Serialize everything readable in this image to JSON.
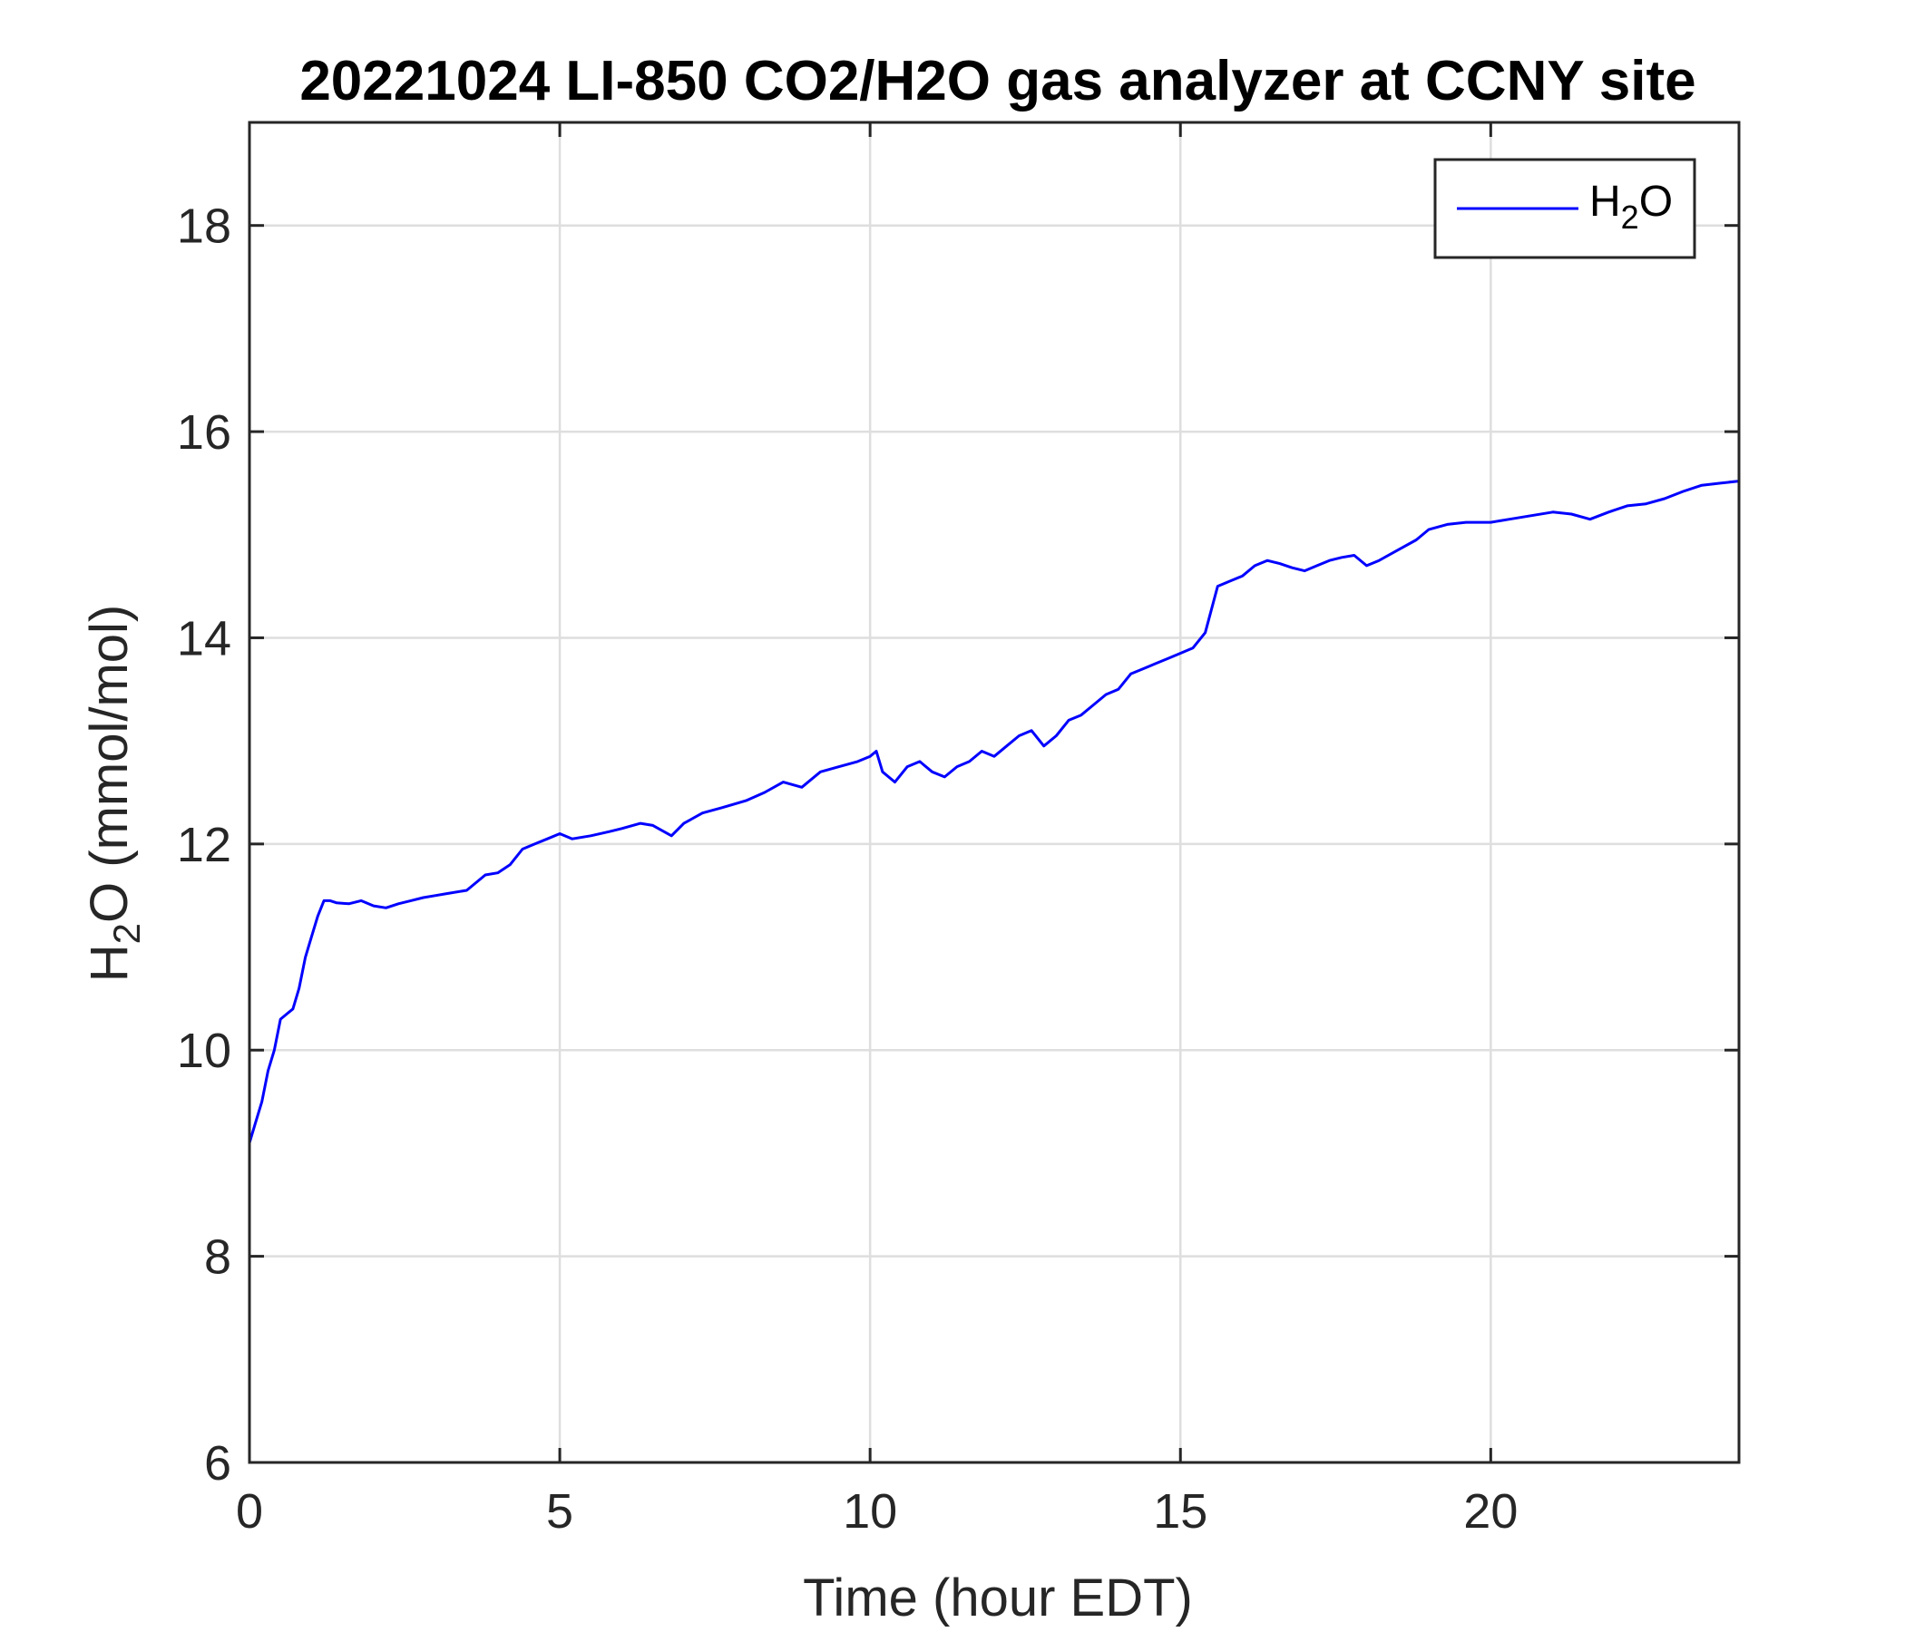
{
  "chart_data": {
    "type": "line",
    "title": "20221024 LI-850 CO2/H2O gas analyzer at CCNY site",
    "xlabel": "Time (hour EDT)",
    "ylabel": {
      "pre": "H",
      "sub": "2",
      "post": "O (mmol/mol)"
    },
    "xlim": [
      0,
      24
    ],
    "ylim": [
      6,
      19
    ],
    "xticks": [
      0,
      5,
      10,
      15,
      20
    ],
    "yticks": [
      6,
      8,
      10,
      12,
      14,
      16,
      18
    ],
    "grid": true,
    "legend_position": "top-right",
    "colors": {
      "series": "#0000ff",
      "axis": "#262626",
      "grid": "#dedede"
    },
    "series": [
      {
        "name": {
          "pre": "H",
          "sub": "2",
          "post": "O"
        },
        "x": [
          0,
          0.1,
          0.2,
          0.3,
          0.4,
          0.5,
          0.6,
          0.7,
          0.8,
          0.9,
          1.0,
          1.1,
          1.2,
          1.3,
          1.4,
          1.6,
          1.8,
          2.0,
          2.2,
          2.4,
          2.6,
          2.8,
          3.0,
          3.2,
          3.5,
          3.8,
          4.0,
          4.2,
          4.4,
          4.6,
          4.8,
          5.0,
          5.2,
          5.5,
          5.8,
          6.0,
          6.3,
          6.5,
          6.8,
          7.0,
          7.3,
          7.6,
          8.0,
          8.3,
          8.6,
          8.9,
          9.2,
          9.5,
          9.8,
          10.0,
          10.1,
          10.2,
          10.4,
          10.6,
          10.8,
          11.0,
          11.2,
          11.4,
          11.6,
          11.8,
          12.0,
          12.2,
          12.4,
          12.6,
          12.8,
          13.0,
          13.2,
          13.4,
          13.6,
          13.8,
          14.0,
          14.2,
          14.4,
          14.6,
          14.8,
          15.0,
          15.2,
          15.4,
          15.6,
          15.8,
          16.0,
          16.2,
          16.4,
          16.6,
          16.8,
          17.0,
          17.2,
          17.4,
          17.6,
          17.8,
          18.0,
          18.2,
          18.5,
          18.8,
          19.0,
          19.3,
          19.6,
          20.0,
          20.3,
          20.6,
          21.0,
          21.3,
          21.6,
          21.9,
          22.2,
          22.5,
          22.8,
          23.1,
          23.4,
          23.7,
          24.0
        ],
        "y": [
          9.1,
          9.3,
          9.5,
          9.8,
          10.0,
          10.3,
          10.35,
          10.4,
          10.6,
          10.9,
          11.1,
          11.3,
          11.45,
          11.45,
          11.43,
          11.42,
          11.45,
          11.4,
          11.38,
          11.42,
          11.45,
          11.48,
          11.5,
          11.52,
          11.55,
          11.7,
          11.72,
          11.8,
          11.95,
          12.0,
          12.05,
          12.1,
          12.05,
          12.08,
          12.12,
          12.15,
          12.2,
          12.18,
          12.08,
          12.2,
          12.3,
          12.35,
          12.42,
          12.5,
          12.6,
          12.55,
          12.7,
          12.75,
          12.8,
          12.85,
          12.9,
          12.7,
          12.6,
          12.75,
          12.8,
          12.7,
          12.65,
          12.75,
          12.8,
          12.9,
          12.85,
          12.95,
          13.05,
          13.1,
          12.95,
          13.05,
          13.2,
          13.25,
          13.35,
          13.45,
          13.5,
          13.65,
          13.7,
          13.75,
          13.8,
          13.85,
          13.9,
          14.05,
          14.5,
          14.55,
          14.6,
          14.7,
          14.75,
          14.72,
          14.68,
          14.65,
          14.7,
          14.75,
          14.78,
          14.8,
          14.7,
          14.75,
          14.85,
          14.95,
          15.05,
          15.1,
          15.12,
          15.12,
          15.15,
          15.18,
          15.22,
          15.2,
          15.15,
          15.22,
          15.28,
          15.3,
          15.35,
          15.42,
          15.48,
          15.5,
          15.52
        ]
      }
    ]
  }
}
